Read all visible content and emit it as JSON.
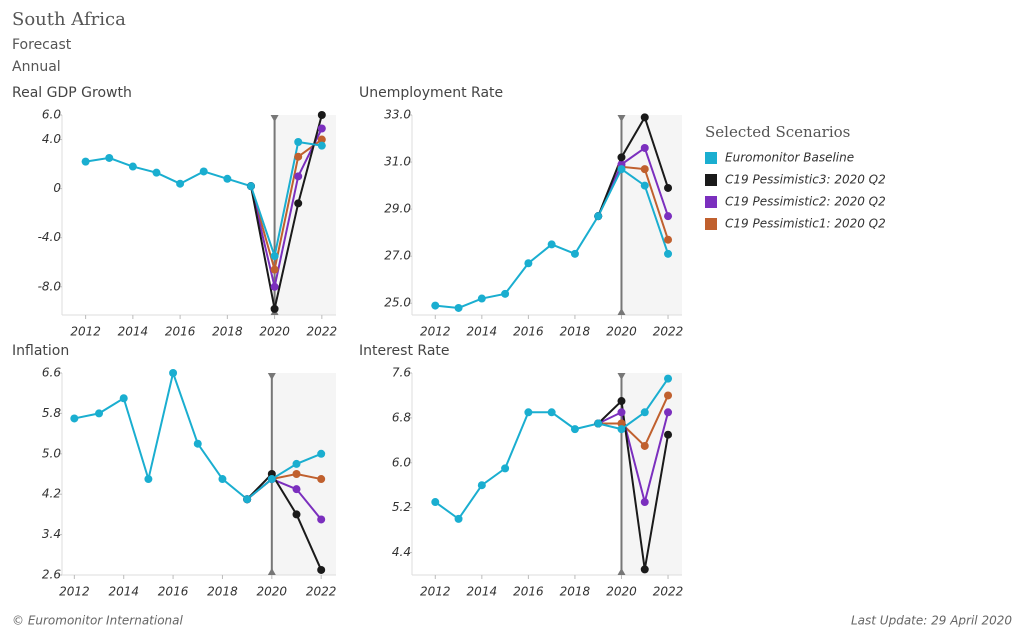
{
  "header": {
    "title": "South Africa",
    "subtitle": "Forecast",
    "frequency": "Annual"
  },
  "legend_title": "Selected Scenarios",
  "footer": {
    "source": "© Euromonitor International",
    "last_update": "Last Update: 29 April 2020"
  },
  "chart_data": [
    {
      "type": "line",
      "title": "Real GDP Growth",
      "forecast_year": 2020,
      "x": [
        2012,
        2013,
        2014,
        2015,
        2016,
        2017,
        2018,
        2019,
        2020,
        2021,
        2022
      ],
      "xlim": [
        2011,
        2022.6
      ],
      "xticks": [
        2012,
        2014,
        2016,
        2018,
        2020,
        2022
      ],
      "ylim": [
        -10.3,
        6
      ],
      "yticks": [
        {
          "value": 6,
          "label": "6.0"
        },
        {
          "value": 4,
          "label": "4.0"
        },
        0,
        {
          "value": -4,
          "label": "-4.0"
        },
        {
          "value": -8,
          "label": "-8.0"
        }
      ],
      "series": [
        {
          "name": "Euromonitor Baseline",
          "color": "#1aaed0",
          "values": [
            2.2,
            2.5,
            1.8,
            1.3,
            0.4,
            1.4,
            0.8,
            0.2,
            -5.5,
            3.8,
            3.5
          ]
        },
        {
          "name": "C19 Pessimistic3: 2020 Q2",
          "color": "#1a1a1a",
          "values": [
            null,
            null,
            null,
            null,
            null,
            null,
            null,
            0.2,
            -9.8,
            -1.2,
            6.0
          ]
        },
        {
          "name": "C19 Pessimistic2: 2020 Q2",
          "color": "#7b2fbe",
          "values": [
            null,
            null,
            null,
            null,
            null,
            null,
            null,
            0.2,
            -8.0,
            1.0,
            4.9
          ]
        },
        {
          "name": "C19 Pessimistic1: 2020 Q2",
          "color": "#c0602e",
          "values": [
            null,
            null,
            null,
            null,
            null,
            null,
            null,
            0.2,
            -6.6,
            2.6,
            4.0
          ]
        }
      ]
    },
    {
      "type": "line",
      "title": "Unemployment Rate",
      "forecast_year": 2020,
      "x": [
        2012,
        2013,
        2014,
        2015,
        2016,
        2017,
        2018,
        2019,
        2020,
        2021,
        2022
      ],
      "xlim": [
        2011,
        2022.6
      ],
      "xticks": [
        2012,
        2014,
        2016,
        2018,
        2020,
        2022
      ],
      "ylim": [
        24.5,
        33
      ],
      "yticks": [
        {
          "value": 33,
          "label": "33.0"
        },
        {
          "value": 31,
          "label": "31.0"
        },
        {
          "value": 29,
          "label": "29.0"
        },
        {
          "value": 27,
          "label": "27.0"
        },
        {
          "value": 25,
          "label": "25.0"
        }
      ],
      "series": [
        {
          "name": "Euromonitor Baseline",
          "color": "#1aaed0",
          "values": [
            24.9,
            24.8,
            25.2,
            25.4,
            26.7,
            27.5,
            27.1,
            28.7,
            30.7,
            30.0,
            27.1
          ]
        },
        {
          "name": "C19 Pessimistic3: 2020 Q2",
          "color": "#1a1a1a",
          "values": [
            null,
            null,
            null,
            null,
            null,
            null,
            null,
            28.7,
            31.2,
            32.9,
            29.9
          ]
        },
        {
          "name": "C19 Pessimistic2: 2020 Q2",
          "color": "#7b2fbe",
          "values": [
            null,
            null,
            null,
            null,
            null,
            null,
            null,
            28.7,
            30.9,
            31.6,
            28.7
          ]
        },
        {
          "name": "C19 Pessimistic1: 2020 Q2",
          "color": "#c0602e",
          "values": [
            null,
            null,
            null,
            null,
            null,
            null,
            null,
            28.7,
            30.8,
            30.7,
            27.7
          ]
        }
      ]
    },
    {
      "type": "line",
      "title": "Inflation",
      "forecast_year": 2020,
      "x": [
        2012,
        2013,
        2014,
        2015,
        2016,
        2017,
        2018,
        2019,
        2020,
        2021,
        2022
      ],
      "xlim": [
        2011.5,
        2022.6
      ],
      "xticks": [
        2012,
        2014,
        2016,
        2018,
        2020,
        2022
      ],
      "ylim": [
        2.6,
        6.6
      ],
      "yticks": [
        6.6,
        5.8,
        {
          "value": 5,
          "label": "5.0"
        },
        4.2,
        3.4,
        2.6
      ],
      "series": [
        {
          "name": "Euromonitor Baseline",
          "color": "#1aaed0",
          "values": [
            5.7,
            5.8,
            6.1,
            4.5,
            6.6,
            5.2,
            4.5,
            4.1,
            4.5,
            4.8,
            5.0
          ]
        },
        {
          "name": "C19 Pessimistic3: 2020 Q2",
          "color": "#1a1a1a",
          "values": [
            null,
            null,
            null,
            null,
            null,
            null,
            null,
            4.1,
            4.6,
            3.8,
            2.7
          ]
        },
        {
          "name": "C19 Pessimistic2: 2020 Q2",
          "color": "#7b2fbe",
          "values": [
            null,
            null,
            null,
            null,
            null,
            null,
            null,
            4.1,
            4.5,
            4.3,
            3.7
          ]
        },
        {
          "name": "C19 Pessimistic1: 2020 Q2",
          "color": "#c0602e",
          "values": [
            null,
            null,
            null,
            null,
            null,
            null,
            null,
            4.1,
            4.5,
            4.6,
            4.5
          ]
        }
      ]
    },
    {
      "type": "line",
      "title": "Interest Rate",
      "forecast_year": 2020,
      "x": [
        2012,
        2013,
        2014,
        2015,
        2016,
        2017,
        2018,
        2019,
        2020,
        2021,
        2022
      ],
      "xlim": [
        2011,
        2022.6
      ],
      "xticks": [
        2012,
        2014,
        2016,
        2018,
        2020,
        2022
      ],
      "ylim": [
        4.0,
        7.6
      ],
      "yticks": [
        7.6,
        6.8,
        {
          "value": 6,
          "label": "6.0"
        },
        5.2,
        4.4
      ],
      "series": [
        {
          "name": "Euromonitor Baseline",
          "color": "#1aaed0",
          "values": [
            5.3,
            5.0,
            5.6,
            5.9,
            6.9,
            6.9,
            6.6,
            6.7,
            6.6,
            6.9,
            7.5
          ]
        },
        {
          "name": "C19 Pessimistic3: 2020 Q2",
          "color": "#1a1a1a",
          "values": [
            null,
            null,
            null,
            null,
            null,
            null,
            null,
            6.7,
            7.1,
            4.1,
            6.5
          ]
        },
        {
          "name": "C19 Pessimistic2: 2020 Q2",
          "color": "#7b2fbe",
          "values": [
            null,
            null,
            null,
            null,
            null,
            null,
            null,
            6.7,
            6.9,
            5.3,
            6.9
          ]
        },
        {
          "name": "C19 Pessimistic1: 2020 Q2",
          "color": "#c0602e",
          "values": [
            null,
            null,
            null,
            null,
            null,
            null,
            null,
            6.7,
            6.7,
            6.3,
            7.2
          ]
        }
      ]
    }
  ]
}
